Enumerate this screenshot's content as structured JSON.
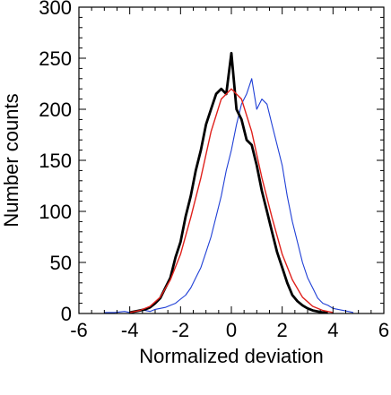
{
  "chart_data": {
    "type": "line",
    "title": "",
    "xlabel": "Normalized deviation",
    "ylabel": "Number counts",
    "xlim": [
      -6,
      6
    ],
    "ylim": [
      0,
      300
    ],
    "x_ticks": [
      -6,
      -4,
      -2,
      0,
      2,
      4,
      6
    ],
    "y_ticks": [
      0,
      50,
      100,
      150,
      200,
      250,
      300
    ],
    "x_tick_labels": [
      "-6",
      "-4",
      "-2",
      "0",
      "2",
      "4",
      "6"
    ],
    "y_tick_labels": [
      "0",
      "50",
      "100",
      "150",
      "200",
      "250",
      "300"
    ],
    "grid": false,
    "legend": "none",
    "series": [
      {
        "color": "#1f3fd6",
        "style": "thin histogram line",
        "x": [
          -5.0,
          -4.6,
          -4.2,
          -4.0,
          -3.8,
          -3.6,
          -3.4,
          -3.2,
          -3.0,
          -2.8,
          -2.6,
          -2.4,
          -2.2,
          -2.0,
          -1.8,
          -1.6,
          -1.4,
          -1.2,
          -1.0,
          -0.8,
          -0.6,
          -0.4,
          -0.2,
          0.0,
          0.2,
          0.4,
          0.6,
          0.8,
          1.0,
          1.2,
          1.4,
          1.6,
          1.8,
          2.0,
          2.2,
          2.4,
          2.6,
          2.8,
          3.0,
          3.2,
          3.4,
          3.6,
          3.8,
          4.0,
          4.2,
          4.4,
          4.6,
          4.8
        ],
        "y": [
          1,
          1,
          2,
          1,
          2,
          3,
          3,
          2,
          4,
          5,
          6,
          8,
          10,
          14,
          18,
          25,
          35,
          45,
          60,
          75,
          95,
          115,
          140,
          160,
          185,
          205,
          215,
          230,
          200,
          210,
          205,
          185,
          165,
          145,
          115,
          90,
          70,
          50,
          35,
          25,
          15,
          10,
          8,
          5,
          4,
          3,
          2,
          1
        ]
      },
      {
        "color": "#000000",
        "style": "thick histogram line",
        "x": [
          -4.0,
          -3.8,
          -3.6,
          -3.4,
          -3.2,
          -3.0,
          -2.8,
          -2.6,
          -2.4,
          -2.2,
          -2.0,
          -1.8,
          -1.6,
          -1.4,
          -1.2,
          -1.0,
          -0.8,
          -0.6,
          -0.4,
          -0.2,
          0.0,
          0.2,
          0.4,
          0.6,
          0.8,
          1.0,
          1.2,
          1.4,
          1.6,
          1.8,
          2.0,
          2.2,
          2.4,
          2.6,
          2.8,
          3.0,
          3.2,
          3.4,
          3.6,
          3.8
        ],
        "y": [
          1,
          2,
          3,
          4,
          6,
          10,
          15,
          25,
          35,
          55,
          70,
          95,
          115,
          140,
          160,
          185,
          200,
          215,
          220,
          215,
          255,
          200,
          190,
          170,
          165,
          145,
          120,
          100,
          80,
          60,
          45,
          30,
          18,
          12,
          8,
          5,
          3,
          2,
          1,
          1
        ]
      },
      {
        "color": "#e0201b",
        "style": "smooth Gaussian fit",
        "x": [
          -4.0,
          -3.6,
          -3.2,
          -2.8,
          -2.4,
          -2.0,
          -1.6,
          -1.2,
          -0.8,
          -0.4,
          0.0,
          0.4,
          0.8,
          1.2,
          1.6,
          2.0,
          2.4,
          2.8,
          3.2,
          3.6,
          4.0
        ],
        "y": [
          1,
          3,
          7,
          16,
          33,
          58,
          94,
          133,
          178,
          210,
          220,
          210,
          178,
          133,
          94,
          58,
          33,
          16,
          7,
          3,
          1
        ]
      }
    ]
  }
}
